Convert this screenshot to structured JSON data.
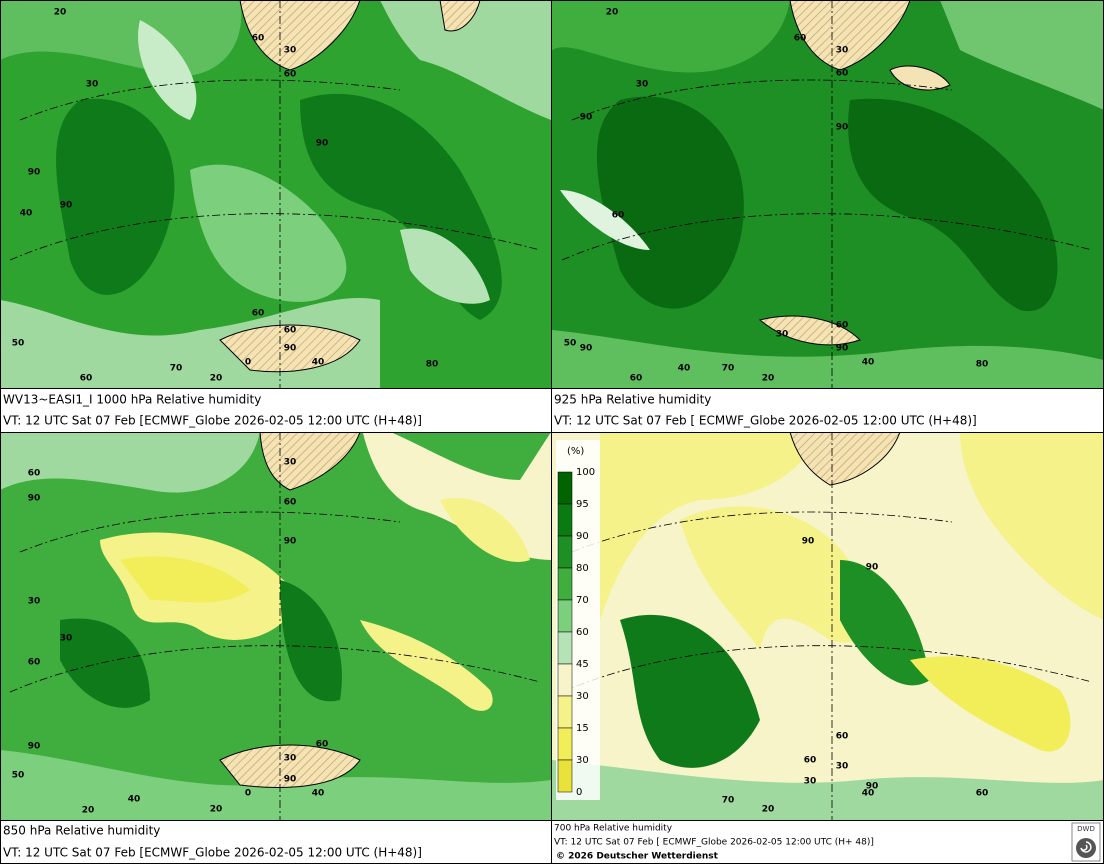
{
  "panels": [
    {
      "title": "WV13~EASI1_I 1000 hPa Relative humidity",
      "valid_time": "VT: 12 UTC Sat  07 Feb [ECMWF_Globe 2026-02-05 12:00 UTC  (H+48)]",
      "contour_labels": [
        "20",
        "60",
        "30",
        "60",
        "30",
        "90",
        "90",
        "90",
        "40",
        "60",
        "60",
        "90",
        "50",
        "60",
        "70",
        "0",
        "40",
        "20",
        "80"
      ]
    },
    {
      "title": "925 hPa Relative humidity",
      "valid_time": "VT: 12 UTC Sat  07 Feb [ ECMWF_Globe 2026-02-05 12:00 UTC  (H+48)]",
      "contour_labels": [
        "20",
        "60",
        "30",
        "60",
        "30",
        "90",
        "90",
        "60",
        "30",
        "60",
        "90",
        "50",
        "90",
        "60",
        "40",
        "70",
        "20",
        "40",
        "80"
      ]
    },
    {
      "title": "850 hPa  Relative humidity",
      "valid_time": "VT: 12 UTC Sat  07 Feb [ECMWF_Globe 2026-02-05 12:00 UTC  (H+48)]",
      "contour_labels": [
        "60",
        "30",
        "90",
        "60",
        "90",
        "30",
        "30",
        "60",
        "90",
        "60",
        "30",
        "50",
        "90",
        "40",
        "20",
        "40",
        "20",
        "0"
      ]
    },
    {
      "title": "700 hPa Relative humidity",
      "valid_time": "VT: 12 UTC Sat  07 Feb [ ECMWF_Globe 2026-02-05 12:00 UTC  (H+ 48)]",
      "contour_labels": [
        "90",
        "90",
        "60",
        "60",
        "30",
        "30",
        "90",
        "70",
        "20",
        "40",
        "60"
      ]
    }
  ],
  "legend": {
    "unit": "(%)",
    "levels": [
      "100",
      "95",
      "90",
      "80",
      "70",
      "60",
      "45",
      "30",
      "15",
      "30",
      "0"
    ]
  },
  "copyright": "© 2026 Deutscher Wetterdienst",
  "logo": "DWD"
}
